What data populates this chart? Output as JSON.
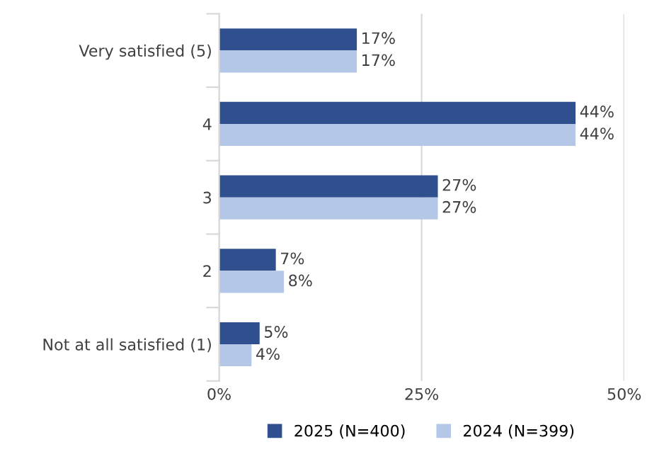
{
  "chart_data": {
    "type": "bar",
    "orientation": "horizontal",
    "categories": [
      "Very satisfied (5)",
      "4",
      "3",
      "2",
      "Not at all satisfied (1)"
    ],
    "series": [
      {
        "name": "2025 (N=400)",
        "color": "#2f4f8f",
        "values": [
          17,
          44,
          27,
          7,
          5
        ],
        "value_labels": [
          "17%",
          "44%",
          "27%",
          "7%",
          "5%"
        ]
      },
      {
        "name": "2024 (N=399)",
        "color": "#b4c7e7",
        "values": [
          17,
          44,
          27,
          8,
          4
        ],
        "value_labels": [
          "17%",
          "44%",
          "27%",
          "8%",
          "4%"
        ]
      }
    ],
    "xlim": [
      0,
      50
    ],
    "xticks": [
      {
        "value": 0,
        "label": "0%"
      },
      {
        "value": 25,
        "label": "25%"
      },
      {
        "value": 50,
        "label": "50%"
      }
    ],
    "grid": "x",
    "legend": "bottom"
  }
}
